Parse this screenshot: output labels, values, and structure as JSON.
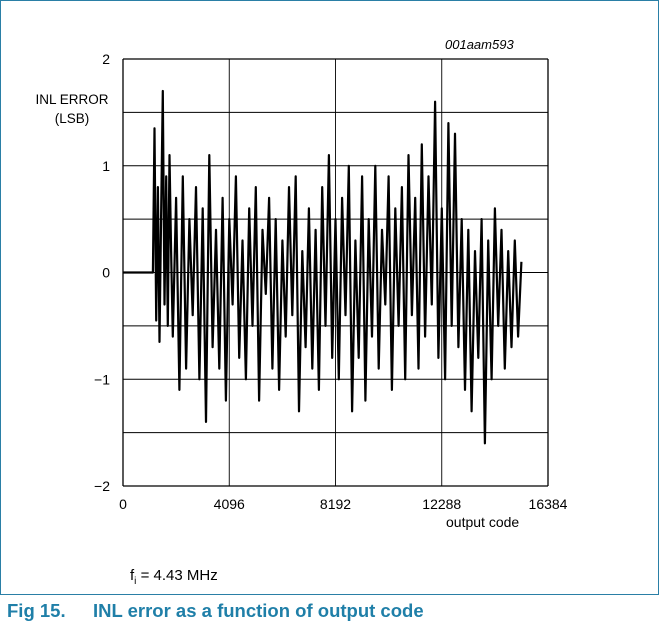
{
  "figure": {
    "code": "001aam593",
    "note_prefix": "f",
    "note_sub": "i",
    "note_rest": " = 4.43 MHz",
    "caption_number": "Fig 15.",
    "caption_text": "INL error as a function of output code",
    "frame_color": "#2a7fa6",
    "caption_color": "#1f7fa8"
  },
  "chart_data": {
    "type": "line",
    "title": "",
    "ylabel": "INL ERROR\n(LSB)",
    "xlabel": "output code",
    "xlim": [
      0,
      16384
    ],
    "ylim": [
      -2,
      2
    ],
    "x_ticks": [
      "0",
      "4096",
      "8192",
      "12288",
      "16384"
    ],
    "y_ticks": [
      "2",
      "1",
      "0",
      "−1",
      "−2"
    ],
    "grid": true,
    "series_color": "#000000",
    "series": [
      {
        "x": [
          0,
          256,
          512,
          768,
          1024,
          1152,
          1216,
          1280,
          1344,
          1408,
          1472,
          1536,
          1600,
          1664,
          1728,
          1792,
          1856,
          1920,
          2048,
          2176,
          2304,
          2432,
          2560,
          2688,
          2816,
          2944,
          3072,
          3200,
          3328,
          3456,
          3584,
          3712,
          3840,
          3968,
          4096,
          4224,
          4352,
          4480,
          4608,
          4736,
          4864,
          4992,
          5120,
          5248,
          5376,
          5504,
          5632,
          5760,
          5888,
          6016,
          6144,
          6272,
          6400,
          6528,
          6656,
          6784,
          6912,
          7040,
          7168,
          7296,
          7424,
          7552,
          7680,
          7808,
          7936,
          8064,
          8192,
          8320,
          8448,
          8576,
          8704,
          8832,
          8960,
          9088,
          9216,
          9344,
          9472,
          9600,
          9728,
          9856,
          9984,
          10112,
          10240,
          10368,
          10496,
          10624,
          10752,
          10880,
          11008,
          11136,
          11264,
          11392,
          11520,
          11648,
          11776,
          11904,
          12032,
          12160,
          12288,
          12416,
          12544,
          12672,
          12800,
          12928,
          13056,
          13184,
          13312,
          13440,
          13568,
          13696,
          13824,
          13952,
          14080,
          14208,
          14336,
          14464,
          14592,
          14720,
          14848,
          14976,
          15104,
          15232,
          15360
        ],
        "y": [
          0,
          0,
          0,
          0,
          0,
          0,
          1.35,
          -0.45,
          0.8,
          -0.65,
          0.6,
          1.7,
          -0.3,
          0.9,
          -0.5,
          1.1,
          0.2,
          -0.6,
          0.7,
          -1.1,
          0.9,
          -0.9,
          0.5,
          -0.4,
          0.8,
          -1.0,
          0.6,
          -1.4,
          1.1,
          -0.7,
          0.4,
          -0.9,
          0.7,
          -1.2,
          0.5,
          -0.3,
          0.9,
          -0.8,
          0.3,
          -1.0,
          0.6,
          -0.5,
          0.8,
          -1.2,
          0.4,
          -0.2,
          0.7,
          -0.9,
          0.5,
          -1.1,
          0.3,
          -0.6,
          0.8,
          -0.4,
          0.9,
          -1.3,
          0.2,
          -0.7,
          0.6,
          -0.9,
          0.4,
          -1.1,
          0.8,
          -0.5,
          1.1,
          -0.8,
          0.5,
          -1.0,
          0.7,
          -0.4,
          1.0,
          -1.3,
          0.3,
          -0.8,
          0.9,
          -1.2,
          0.5,
          -0.6,
          1.0,
          -0.9,
          0.4,
          -0.3,
          0.9,
          -1.1,
          0.6,
          -0.5,
          0.8,
          -1.0,
          1.1,
          -0.4,
          0.7,
          -0.9,
          1.2,
          -0.6,
          0.9,
          -0.3,
          1.6,
          -0.8,
          0.6,
          -1.0,
          1.4,
          -0.5,
          1.3,
          -0.7,
          0.5,
          -1.1,
          0.4,
          -1.3,
          0.2,
          -0.8,
          0.5,
          -1.6,
          0.3,
          -1.0,
          0.6,
          -0.5,
          0.4,
          -0.9,
          0.2,
          -0.7,
          0.3,
          -0.6,
          0.1
        ]
      }
    ]
  }
}
